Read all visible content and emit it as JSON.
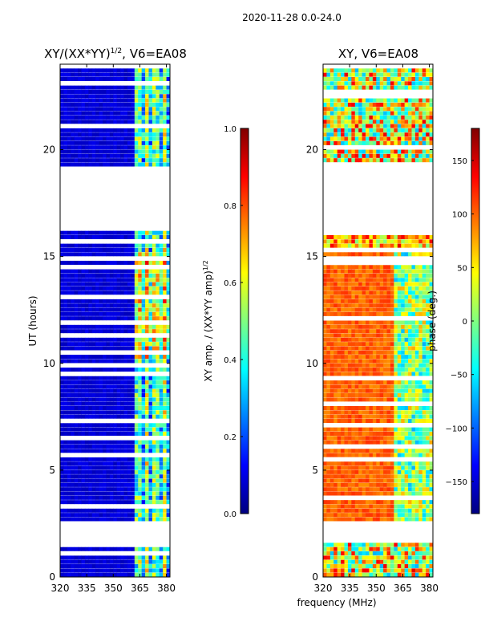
{
  "chart_data": {
    "suptitle": "2020-11-28 0.0-24.0",
    "shared": {
      "xlabel": "frequency (MHz)",
      "x_ticks": [
        320,
        335,
        350,
        365,
        380
      ],
      "xlim": [
        320,
        382
      ],
      "ylim": [
        0,
        24
      ],
      "y_ticks": [
        0,
        5,
        10,
        15,
        20
      ],
      "data_gaps_hours": [
        [
          1.7,
          2.7
        ],
        [
          16.2,
          19.2
        ]
      ],
      "row_spacing_hours": 0.2,
      "strong_signal_band_mhz": [
        363,
        382
      ]
    },
    "panels": [
      {
        "type": "heatmap",
        "title": "XY/(XX*YY)",
        "title_exponent": "1/2",
        "title_suffix": ", V6=EA08",
        "ylabel": "UT (hours)",
        "quantity": "amplitude ratio",
        "colorbar": {
          "label": "XY amp. / (XX*YY amp)",
          "label_exponent": "1/2",
          "range": [
            0.0,
            1.0
          ],
          "ticks": [
            0.0,
            0.2,
            0.4,
            0.6,
            0.8,
            1.0
          ],
          "tick_labels": [
            "0.0",
            "0.2",
            "0.4",
            "0.6",
            "0.8",
            "1.0"
          ]
        }
      },
      {
        "type": "heatmap",
        "title": "XY, V6=EA08",
        "quantity": "phase",
        "colorbar": {
          "label": "phase (deg.)",
          "range": [
            -180,
            180
          ],
          "ticks": [
            -150,
            -100,
            -50,
            0,
            50,
            100,
            150
          ],
          "tick_labels": [
            "−150",
            "−100",
            "−50",
            "0",
            "50",
            "100",
            "150"
          ]
        }
      }
    ]
  }
}
